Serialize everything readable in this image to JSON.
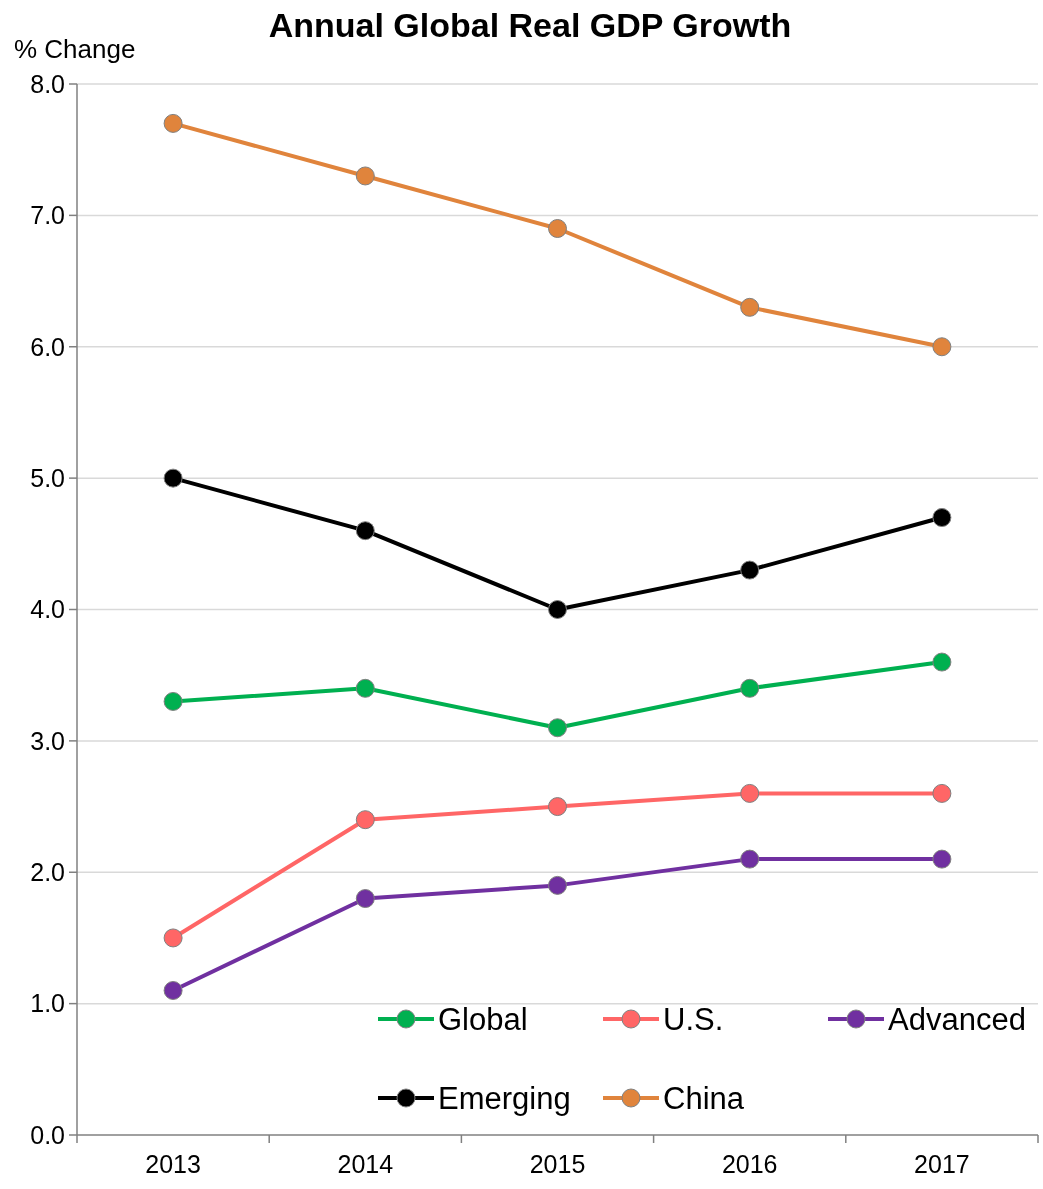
{
  "chart_data": {
    "type": "line",
    "title": "Annual Global Real GDP Growth",
    "ylabel": "% Change",
    "categories": [
      "2013",
      "2014",
      "2015",
      "2016",
      "2017"
    ],
    "series": [
      {
        "name": "Global",
        "color": "#00b050",
        "values": [
          3.3,
          3.4,
          3.1,
          3.4,
          3.6
        ]
      },
      {
        "name": "U.S.",
        "color": "#ff6666",
        "values": [
          1.5,
          2.4,
          2.5,
          2.6,
          2.6
        ]
      },
      {
        "name": "Advanced",
        "color": "#7030a0",
        "values": [
          1.1,
          1.8,
          1.9,
          2.1,
          2.1
        ]
      },
      {
        "name": "Emerging",
        "color": "#000000",
        "values": [
          5.0,
          4.6,
          4.0,
          4.3,
          4.7
        ]
      },
      {
        "name": "China",
        "color": "#e0843c",
        "values": [
          7.7,
          7.3,
          6.9,
          6.3,
          6.0
        ]
      }
    ],
    "ylim": [
      0,
      8
    ],
    "yticks": [
      {
        "value": 0,
        "label": "0.0"
      },
      {
        "value": 1,
        "label": "1.0"
      },
      {
        "value": 2,
        "label": "2.0"
      },
      {
        "value": 3,
        "label": "3.0"
      },
      {
        "value": 4,
        "label": "4.0"
      },
      {
        "value": 5,
        "label": "5.0"
      },
      {
        "value": 6,
        "label": "6.0"
      },
      {
        "value": 7,
        "label": "7.0"
      },
      {
        "value": 8,
        "label": "8.0"
      }
    ],
    "grid": "y",
    "legend": "bottom right",
    "marker": "circle",
    "line_style": "solid"
  }
}
